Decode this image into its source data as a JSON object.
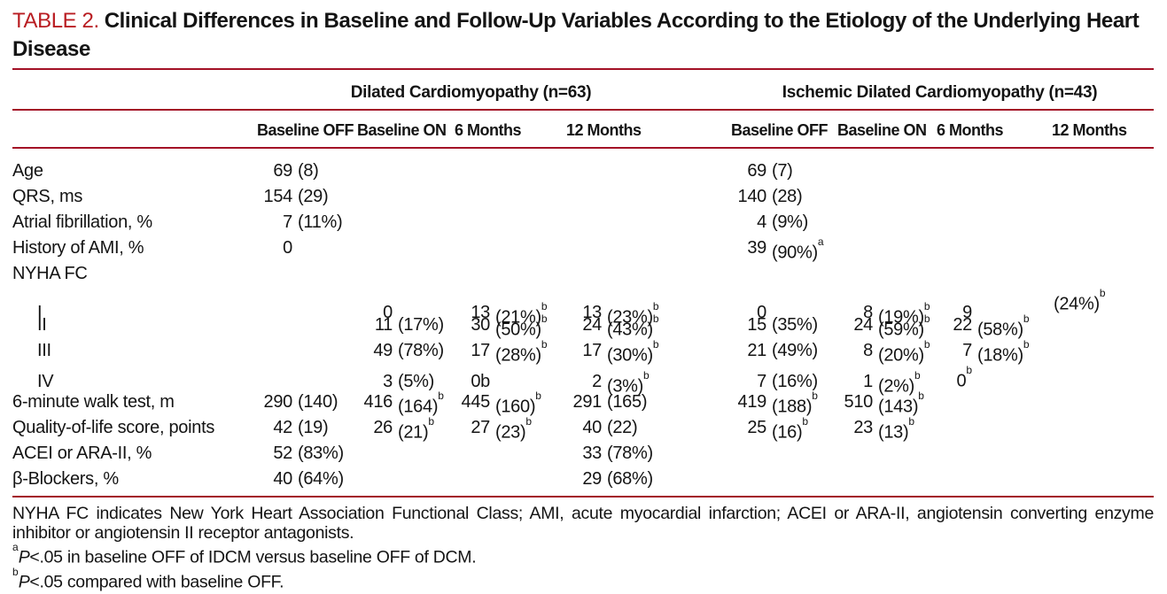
{
  "title": {
    "tag": "TABLE 2.",
    "text": "Clinical Differences in Baseline and Follow-Up Variables According to the Etiology of the Underlying Heart Disease"
  },
  "colors": {
    "title_red": "#b91d22",
    "rule_red": "#a31126",
    "text": "#141414"
  },
  "table": {
    "groups": {
      "dcm": "Dilated Cardiomyopathy (n=63)",
      "idcm": "Ischemic Dilated Cardiomyopathy (n=43)"
    },
    "col_headers": {
      "dcm": [
        "Baseline OFF",
        "Baseline ON",
        "6 Months",
        "12 Months"
      ],
      "idcm": [
        "Baseline OFF",
        "Baseline ON",
        "6 Months",
        "12 Months"
      ]
    },
    "rows": [
      {
        "label": "Age",
        "indent": false,
        "cells": [
          {
            "n": "69",
            "p": "(8)"
          },
          null,
          null,
          null,
          {
            "n": "69",
            "p": "(7)"
          },
          null,
          null,
          null
        ]
      },
      {
        "label": "QRS, ms",
        "indent": false,
        "cells": [
          {
            "n": "154",
            "p": "(29)"
          },
          null,
          null,
          null,
          {
            "n": "140",
            "p": "(28)"
          },
          null,
          null,
          null
        ]
      },
      {
        "label": "Atrial fibrillation, %",
        "indent": false,
        "cells": [
          {
            "n": "7",
            "p": "(11%)"
          },
          null,
          null,
          null,
          {
            "n": "4",
            "p": "(9%)"
          },
          null,
          null,
          null
        ]
      },
      {
        "label": "History of AMI, %",
        "indent": false,
        "cells": [
          {
            "n": "0"
          },
          null,
          null,
          null,
          {
            "n": "39",
            "p": "(90%)",
            "sup": "a"
          },
          null,
          null,
          null
        ]
      },
      {
        "label": "NYHA FC",
        "indent": false,
        "cells": [
          null,
          null,
          null,
          null,
          null,
          null,
          null,
          null
        ]
      },
      {
        "label": "I",
        "indent": true,
        "cells": [
          null,
          {
            "n": "0"
          },
          {
            "n": "13",
            "p": "(21%)",
            "sup": "b"
          },
          {
            "n": "13",
            "p": "(23%)",
            "sup": "b"
          },
          {
            "n": "0"
          },
          {
            "n": "8",
            "p": "(19%)",
            "sup": "b"
          },
          {
            "n": "9"
          },
          {
            "p": "(24%)",
            "sup": "b"
          }
        ]
      },
      {
        "label": "II",
        "indent": true,
        "cells": [
          null,
          {
            "n": "11",
            "p": "(17%)"
          },
          {
            "n": "30",
            "p": "(50%)",
            "sup": "b"
          },
          {
            "n": "24",
            "p": "(43%)",
            "sup": "b"
          },
          {
            "n": "15",
            "p": "(35%)"
          },
          {
            "n": "24",
            "p": "(59%)",
            "sup": "b"
          },
          {
            "n": "22",
            "p": "(58%)",
            "sup": "b"
          },
          null
        ]
      },
      {
        "label": "III",
        "indent": true,
        "cells": [
          null,
          {
            "n": "49",
            "p": "(78%)"
          },
          {
            "n": "17",
            "p": "(28%)",
            "sup": "b"
          },
          {
            "n": "17",
            "p": "(30%)",
            "sup": "b"
          },
          {
            "n": "21",
            "p": "(49%)"
          },
          {
            "n": "8",
            "p": "(20%)",
            "sup": "b"
          },
          {
            "n": "7",
            "p": "(18%)",
            "sup": "b"
          },
          null
        ]
      },
      {
        "label": "IV",
        "indent": true,
        "cells": [
          null,
          {
            "n": "3",
            "p": "(5%)"
          },
          {
            "n": "0b"
          },
          {
            "n": "2",
            "p": "(3%)",
            "sup": "b"
          },
          {
            "n": "7",
            "p": "(16%)"
          },
          {
            "n": "1",
            "p": "(2%)",
            "sup": "b"
          },
          {
            "n": "0",
            "sup": "b"
          },
          null
        ]
      },
      {
        "label": "6-minute walk test, m",
        "indent": false,
        "cells": [
          {
            "n": "290",
            "p": "(140)"
          },
          {
            "n": "416",
            "p": "(164)",
            "sup": "b"
          },
          {
            "n": "445",
            "p": "(160)",
            "sup": "b"
          },
          {
            "n": "291",
            "p": "(165)"
          },
          {
            "n": "419",
            "p": "(188)",
            "sup": "b"
          },
          {
            "n": "510",
            "p": "(143)",
            "sup": "b"
          },
          null,
          null
        ]
      },
      {
        "label": "Quality-of-life score, points",
        "indent": false,
        "cells": [
          {
            "n": "42",
            "p": "(19)"
          },
          {
            "n": "26",
            "p": "(21)",
            "sup": "b"
          },
          {
            "n": "27",
            "p": "(23)",
            "sup": "b"
          },
          {
            "n": "40",
            "p": "(22)"
          },
          {
            "n": "25",
            "p": "(16)",
            "sup": "b"
          },
          {
            "n": "23",
            "p": "(13)",
            "sup": "b"
          },
          null,
          null
        ]
      },
      {
        "label": "ACEI or ARA-II, %",
        "indent": false,
        "cells": [
          {
            "n": "52",
            "p": "(83%)"
          },
          null,
          null,
          {
            "n": "33",
            "p": "(78%)"
          },
          null,
          null,
          null,
          null
        ]
      },
      {
        "label": "β-Blockers, %",
        "indent": false,
        "cells": [
          {
            "n": "40",
            "p": "(64%)"
          },
          null,
          null,
          {
            "n": "29",
            "p": "(68%)"
          },
          null,
          null,
          null,
          null
        ]
      }
    ]
  },
  "footnotes": {
    "abbr": "NYHA FC indicates New York Heart Association Functional Class; AMI, acute myocardial infarction; ACEI or ARA-II, angiotensin converting enzyme inhibitor or angiotensin II receptor antagonists.",
    "a": {
      "sup": "a",
      "p": "P",
      "rest": "<.05 in baseline OFF of IDCM versus baseline OFF of DCM."
    },
    "b": {
      "sup": "b",
      "p": "P",
      "rest": "<.05 compared with baseline OFF."
    }
  }
}
